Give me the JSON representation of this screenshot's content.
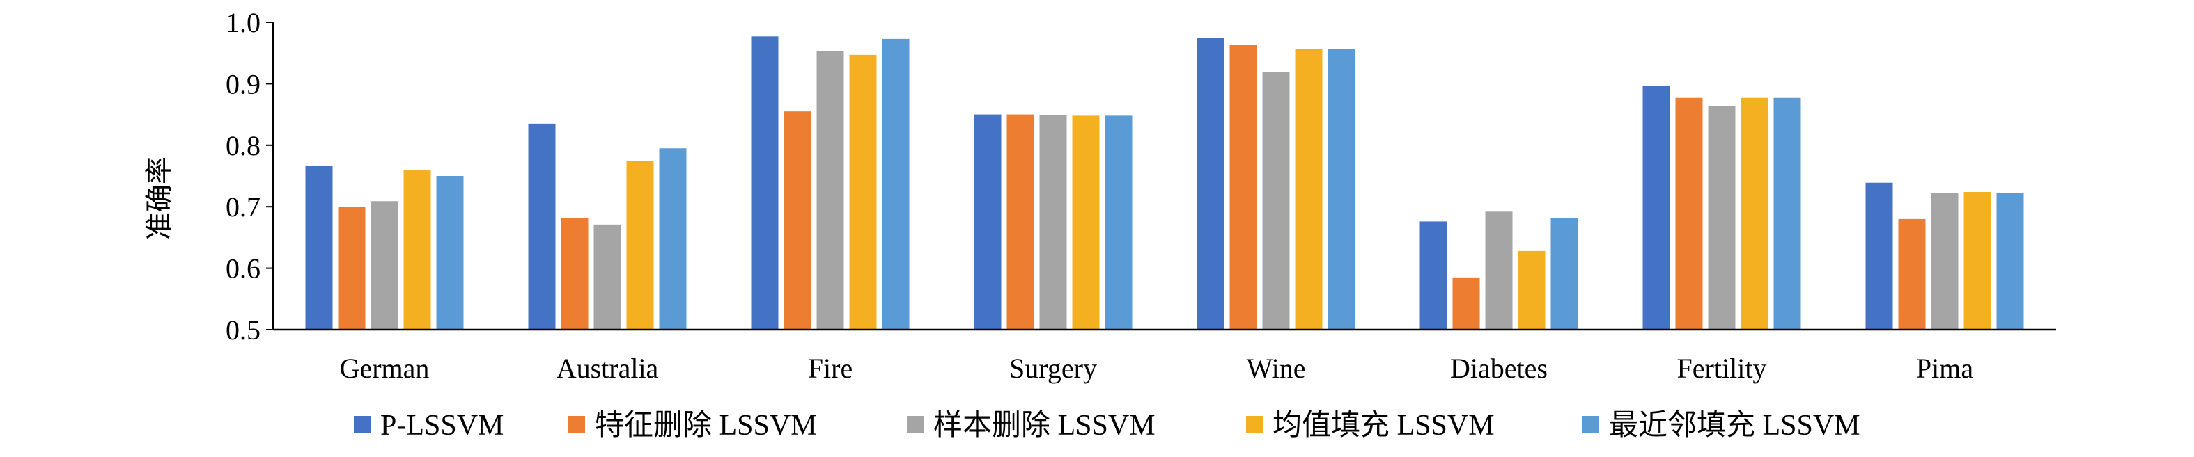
{
  "chart_data": {
    "type": "bar",
    "title": "",
    "xlabel": "",
    "ylabel": "准确率",
    "ylim": [
      0.5,
      1.0
    ],
    "yticks": [
      "0.5",
      "0.6",
      "0.7",
      "0.8",
      "0.9",
      "1.0"
    ],
    "grid": false,
    "legend_position": "bottom",
    "categories": [
      "German",
      "Australia",
      "Fire",
      "Surgery",
      "Wine",
      "Diabetes",
      "Fertility",
      "Pima"
    ],
    "series": [
      {
        "name": "P-LSSVM",
        "color": "#4472C4",
        "values": [
          0.767,
          0.835,
          0.977,
          0.85,
          0.975,
          0.676,
          0.897,
          0.739
        ]
      },
      {
        "name": "特征删除 LSSVM",
        "color": "#ED7D31",
        "values": [
          0.7,
          0.682,
          0.855,
          0.85,
          0.963,
          0.585,
          0.877,
          0.68
        ]
      },
      {
        "name": "样本删除 LSSVM",
        "color": "#A5A5A5",
        "values": [
          0.709,
          0.671,
          0.953,
          0.849,
          0.919,
          0.692,
          0.864,
          0.722
        ]
      },
      {
        "name": "均值填充 LSSVM",
        "color": "#F5B021",
        "values": [
          0.759,
          0.774,
          0.947,
          0.848,
          0.957,
          0.628,
          0.877,
          0.724
        ]
      },
      {
        "name": "最近邻填充 LSSVM",
        "color": "#5B9BD5",
        "values": [
          0.75,
          0.795,
          0.973,
          0.848,
          0.957,
          0.681,
          0.877,
          0.722
        ]
      }
    ]
  }
}
